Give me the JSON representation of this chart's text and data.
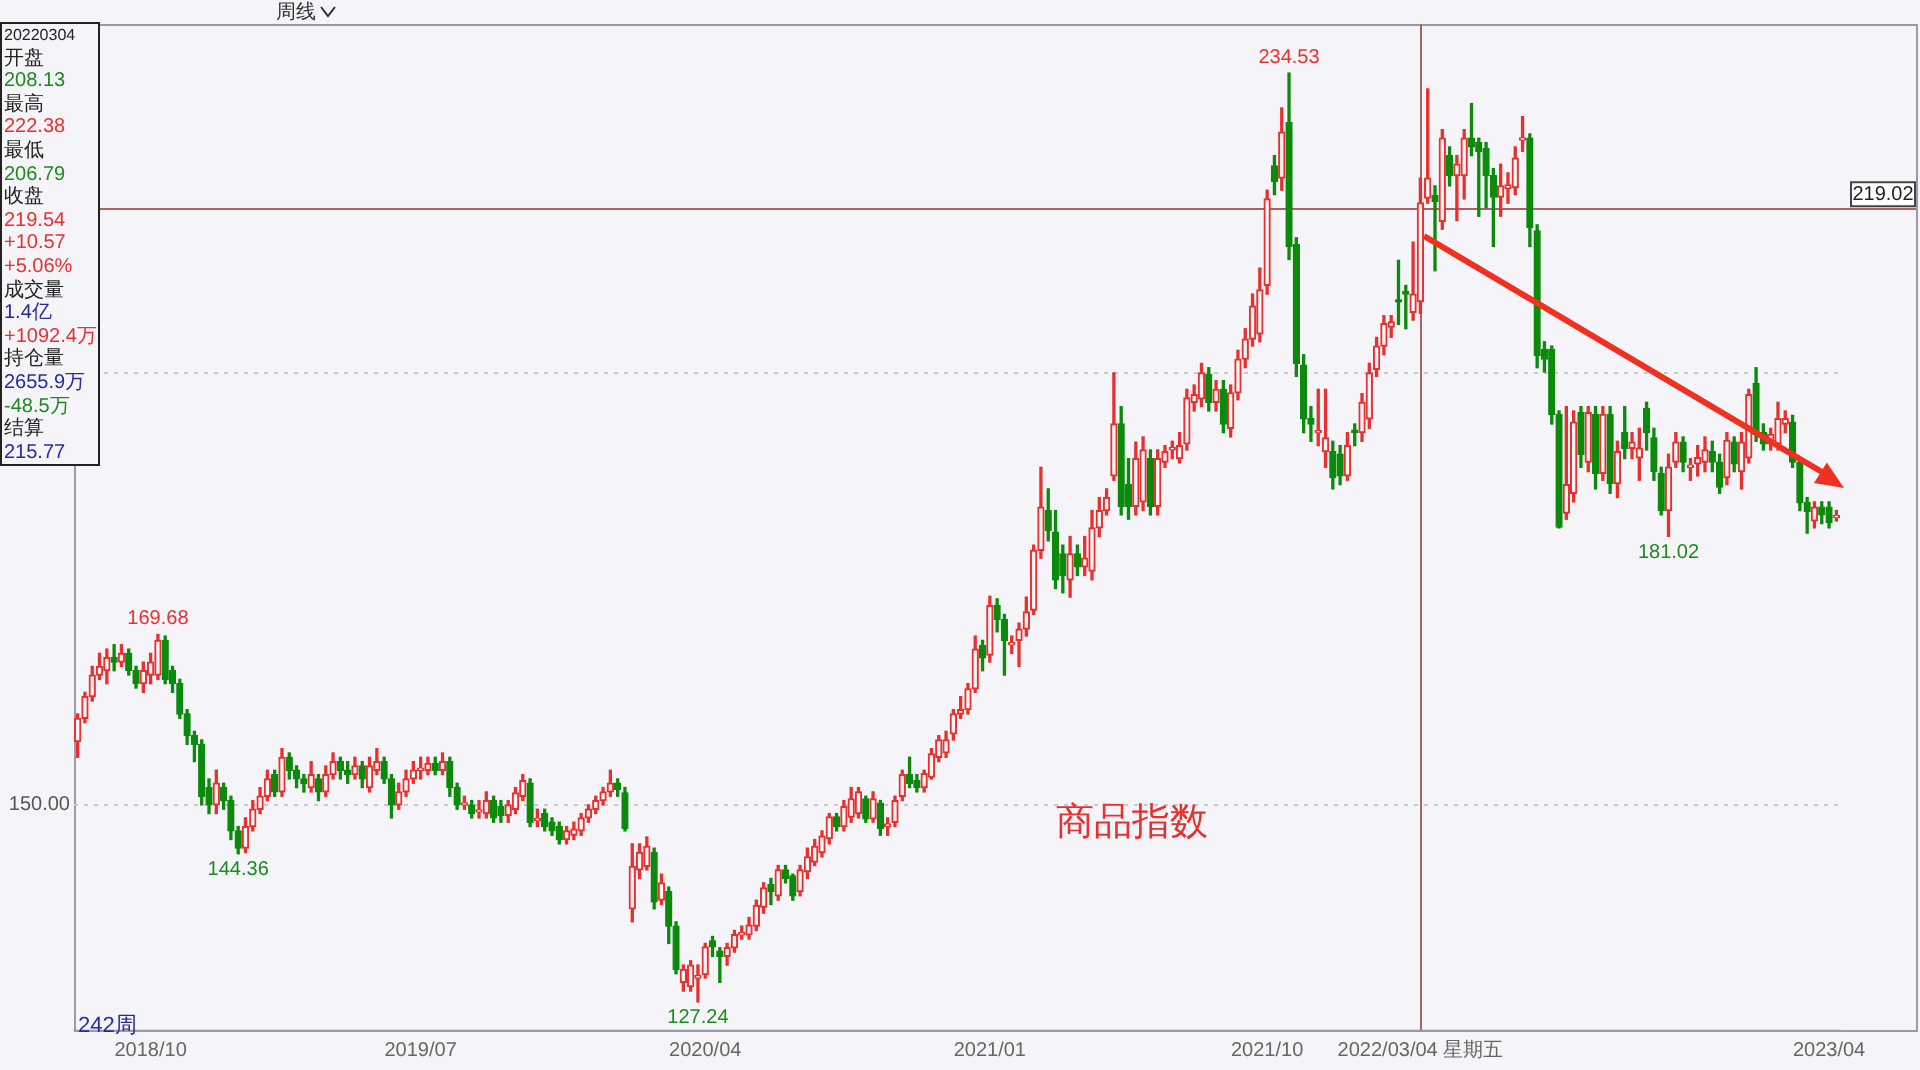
{
  "chart_data": {
    "type": "candlestick",
    "categories": [
      null,
      null,
      null,
      null,
      null,
      null,
      null,
      null,
      null,
      null,
      "2018/10",
      null,
      null,
      null,
      null,
      null,
      null,
      null,
      null,
      null,
      null,
      null,
      null,
      null,
      null,
      null,
      null,
      null,
      null,
      null,
      null,
      null,
      null,
      null,
      null,
      null,
      null,
      null,
      null,
      null,
      null,
      null,
      null,
      null,
      null,
      null,
      null,
      "2019/07",
      null,
      null,
      null,
      null,
      null,
      null,
      null,
      null,
      null,
      null,
      null,
      null,
      null,
      null,
      null,
      null,
      null,
      null,
      null,
      null,
      null,
      null,
      null,
      null,
      null,
      null,
      null,
      null,
      null,
      null,
      null,
      null,
      null,
      null,
      null,
      null,
      null,
      null,
      "2020/04",
      null,
      null,
      null,
      null,
      null,
      null,
      null,
      null,
      null,
      null,
      null,
      null,
      null,
      null,
      null,
      null,
      null,
      null,
      null,
      null,
      null,
      null,
      null,
      null,
      null,
      null,
      null,
      null,
      null,
      null,
      null,
      null,
      null,
      null,
      null,
      null,
      null,
      null,
      "2021/01",
      null,
      null,
      null,
      null,
      null,
      null,
      null,
      null,
      null,
      null,
      null,
      null,
      null,
      null,
      null,
      null,
      null,
      null,
      null,
      null,
      null,
      null,
      null,
      null,
      null,
      null,
      null,
      null,
      null,
      null,
      null,
      null,
      null,
      null,
      null,
      null,
      null,
      "2021/10",
      null,
      null,
      null,
      null,
      null,
      null,
      null,
      null,
      null,
      null,
      null,
      null,
      null,
      null,
      null,
      null,
      null,
      null,
      null,
      null,
      "2022/03/04 星期五",
      null,
      null,
      null,
      null,
      null,
      null,
      null,
      null,
      null,
      null,
      null,
      null,
      null,
      null,
      null,
      null,
      null,
      null,
      null,
      null,
      null,
      null,
      null,
      null,
      null,
      null,
      null,
      null,
      null,
      null,
      null,
      null,
      null,
      null,
      null,
      null,
      null,
      null,
      null,
      null,
      null,
      null,
      null,
      null,
      null,
      null,
      null,
      null,
      null,
      null,
      null,
      null,
      null,
      null,
      null,
      "2023/04",
      null
    ],
    "ohlc": [
      [
        157.3,
        160.5,
        155.5,
        160
      ],
      [
        160,
        163,
        159.5,
        162.5
      ],
      [
        162.5,
        166,
        162,
        165
      ],
      [
        165,
        167.5,
        164.5,
        166
      ],
      [
        165.5,
        168,
        164,
        167
      ],
      [
        167,
        168.5,
        165.5,
        166.5
      ],
      [
        166.5,
        168.5,
        166,
        167.5
      ],
      [
        167.5,
        168,
        165,
        165.5
      ],
      [
        165.5,
        166,
        163.5,
        164
      ],
      [
        164,
        166.5,
        163,
        165.5
      ],
      [
        165,
        167.5,
        164,
        166.5
      ],
      [
        165,
        169.68,
        164.5,
        169
      ],
      [
        169,
        169.5,
        164,
        164.5
      ],
      [
        165.5,
        166,
        163,
        164
      ],
      [
        164,
        164.5,
        160,
        160.5
      ],
      [
        160.5,
        161,
        157,
        158
      ],
      [
        158,
        158.5,
        155,
        157
      ],
      [
        157,
        157.5,
        150,
        151
      ],
      [
        152,
        153,
        149,
        150
      ],
      [
        150,
        154,
        149,
        152.5
      ],
      [
        152,
        152.5,
        149.5,
        150.5
      ],
      [
        150.5,
        151,
        146,
        147
      ],
      [
        147,
        147.5,
        144.36,
        145
      ],
      [
        145,
        148.5,
        144.5,
        147.5
      ],
      [
        147.5,
        150.5,
        147,
        149.5
      ],
      [
        149.5,
        152,
        149,
        151
      ],
      [
        151,
        154,
        150.5,
        153
      ],
      [
        153.5,
        154,
        151,
        151.5
      ],
      [
        151.5,
        156.5,
        151,
        155.5
      ],
      [
        155.5,
        156,
        153,
        154
      ],
      [
        154,
        154.5,
        152,
        153
      ],
      [
        153,
        153.5,
        151.5,
        152.5
      ],
      [
        152,
        155,
        151.5,
        153.5
      ],
      [
        153,
        153.5,
        150.5,
        151.5
      ],
      [
        151.5,
        154.5,
        151,
        153.5
      ],
      [
        153.5,
        156,
        153,
        155
      ],
      [
        155,
        155.5,
        153,
        154
      ],
      [
        154,
        155,
        152.5,
        153.5
      ],
      [
        153.5,
        155.5,
        153,
        154.5
      ],
      [
        154.5,
        155,
        152,
        153
      ],
      [
        152,
        155.5,
        151.5,
        154.5
      ],
      [
        154,
        156.5,
        153.5,
        155
      ],
      [
        155,
        155.5,
        152.5,
        153
      ],
      [
        153,
        153.5,
        148.5,
        150
      ],
      [
        150,
        152.5,
        149.5,
        151.5
      ],
      [
        151.5,
        154,
        151,
        153
      ],
      [
        153,
        155,
        152.5,
        154
      ],
      [
        154,
        155.5,
        153,
        154.2
      ],
      [
        154,
        155.5,
        153.5,
        154.8
      ],
      [
        154.8,
        155.5,
        153.5,
        154
      ],
      [
        154,
        156,
        153.5,
        155
      ],
      [
        155,
        155.5,
        151,
        152
      ],
      [
        152,
        152.5,
        149.5,
        150
      ],
      [
        150,
        151,
        149.5,
        150.2
      ],
      [
        150,
        150.5,
        148.5,
        149
      ],
      [
        149.2,
        150.5,
        148.5,
        149.4
      ],
      [
        149,
        151.5,
        148.5,
        150.5
      ],
      [
        150.5,
        151,
        148,
        148.5
      ],
      [
        149.8,
        150.5,
        148,
        148.8
      ],
      [
        148.8,
        150.5,
        148,
        150
      ],
      [
        149.5,
        152,
        149,
        151.4
      ],
      [
        151,
        153.5,
        150.5,
        152.8
      ],
      [
        152.5,
        153,
        147.5,
        148
      ],
      [
        148.2,
        149.5,
        147.5,
        148.4
      ],
      [
        149,
        149.5,
        147,
        147.5
      ],
      [
        148,
        148.5,
        146.5,
        147
      ],
      [
        147.5,
        148,
        145.5,
        146
      ],
      [
        146,
        147.5,
        145.5,
        147
      ],
      [
        146.5,
        148,
        146,
        147.2
      ],
      [
        147,
        149,
        146.5,
        148.5
      ],
      [
        148.5,
        150,
        148,
        149.5
      ],
      [
        149.5,
        151,
        149,
        150.5
      ],
      [
        150.5,
        152,
        150,
        151.5
      ],
      [
        151.5,
        154,
        151,
        152.5
      ],
      [
        152.5,
        153,
        151,
        151.8
      ],
      [
        151.4,
        152,
        147,
        147.3
      ],
      [
        138,
        145.5,
        136.5,
        142.9
      ],
      [
        142.5,
        145.5,
        141.5,
        144.5
      ],
      [
        142.9,
        146.3,
        142.5,
        145.2
      ],
      [
        144.5,
        145,
        138,
        138.8
      ],
      [
        139,
        142,
        138.5,
        141
      ],
      [
        140,
        140.5,
        134,
        136
      ],
      [
        136,
        136.5,
        130.5,
        131
      ],
      [
        129.5,
        131.5,
        128.5,
        131
      ],
      [
        129,
        132,
        128.5,
        131.5
      ],
      [
        130,
        131.5,
        127.24,
        130.3
      ],
      [
        130.4,
        134,
        130,
        133.6
      ],
      [
        134.3,
        134.8,
        132.5,
        133.6
      ],
      [
        133.1,
        133.5,
        129.5,
        132.5
      ],
      [
        132.5,
        134,
        131.5,
        133.5
      ],
      [
        133.5,
        135.5,
        133,
        135
      ],
      [
        135,
        136,
        134.5,
        135.2
      ],
      [
        135,
        137,
        134.5,
        136.1
      ],
      [
        136,
        139,
        135.5,
        138.4
      ],
      [
        138.2,
        141,
        137.5,
        140.4
      ],
      [
        140.8,
        141.5,
        138.5,
        140
      ],
      [
        139.5,
        143,
        139,
        142.5
      ],
      [
        142.5,
        143,
        141,
        141.5
      ],
      [
        141.8,
        142,
        139,
        139.5
      ],
      [
        140,
        143,
        139.5,
        142.5
      ],
      [
        142.3,
        145,
        141.5,
        144
      ],
      [
        143.4,
        146,
        143,
        145.2
      ],
      [
        144.5,
        147,
        144,
        146.4
      ],
      [
        146.1,
        149,
        145.5,
        148.6
      ],
      [
        148.6,
        149,
        147,
        147.5
      ],
      [
        147.5,
        150.5,
        147,
        149.8
      ],
      [
        148.6,
        152,
        148,
        150.7
      ],
      [
        149,
        152,
        148.5,
        151.5
      ],
      [
        150.7,
        151,
        148,
        148.4
      ],
      [
        148.4,
        151.5,
        148,
        150.7
      ],
      [
        150.2,
        150.5,
        146.5,
        147.3
      ],
      [
        147.5,
        148.5,
        146.5,
        147.8
      ],
      [
        148,
        151,
        147.5,
        150.5
      ],
      [
        151,
        154,
        150.5,
        153.5
      ],
      [
        153.5,
        155.5,
        152,
        152.5
      ],
      [
        152.8,
        153.5,
        151.5,
        152
      ],
      [
        152,
        154,
        151.5,
        153.6
      ],
      [
        153.2,
        156.5,
        153,
        155.9
      ],
      [
        155.5,
        158,
        155,
        157.5
      ],
      [
        156,
        158.5,
        155.5,
        157.5
      ],
      [
        158.2,
        161,
        157.5,
        160.5
      ],
      [
        160.5,
        162.5,
        160,
        161
      ],
      [
        161,
        164,
        160.5,
        163.4
      ],
      [
        163.4,
        169.5,
        163,
        168
      ],
      [
        168.4,
        169,
        165.5,
        167
      ],
      [
        167.3,
        174.1,
        166.5,
        173
      ],
      [
        173,
        173.8,
        170,
        171.4
      ],
      [
        171.4,
        172,
        165,
        169
      ],
      [
        168.5,
        169.5,
        167.5,
        168.7
      ],
      [
        169,
        171,
        166,
        170.3
      ],
      [
        170.3,
        174,
        169.5,
        172.3
      ],
      [
        172.5,
        180,
        172,
        179.4
      ],
      [
        179.4,
        189,
        178.5,
        184.4
      ],
      [
        184,
        186.5,
        180.5,
        181.7
      ],
      [
        181.5,
        184,
        175,
        176
      ],
      [
        179,
        180,
        174.5,
        176.5
      ],
      [
        176,
        181,
        174,
        179
      ],
      [
        179,
        180,
        176.5,
        177.5
      ],
      [
        177.5,
        181,
        176.5,
        178.5
      ],
      [
        177,
        184,
        176,
        182
      ],
      [
        182,
        185.5,
        181,
        184
      ],
      [
        184,
        186.5,
        183.5,
        185.5
      ],
      [
        188,
        199.9,
        187.5,
        194
      ],
      [
        194,
        196,
        183.5,
        184.5
      ],
      [
        187,
        190,
        183,
        184.5
      ],
      [
        184.5,
        191.9,
        183.5,
        190
      ],
      [
        185,
        192.5,
        184,
        191
      ],
      [
        190,
        191,
        183.5,
        184.5
      ],
      [
        184.5,
        191,
        183.5,
        190
      ],
      [
        189.6,
        191.5,
        189,
        190.8
      ],
      [
        191,
        192,
        190,
        191.3
      ],
      [
        190,
        193,
        189.5,
        191.5
      ],
      [
        191.7,
        198,
        191,
        197
      ],
      [
        196.5,
        198.5,
        195.5,
        197.4
      ],
      [
        196.9,
        201,
        196,
        199.9
      ],
      [
        199.7,
        200.5,
        195.5,
        196.5
      ],
      [
        196.5,
        199,
        195.5,
        198
      ],
      [
        198,
        199,
        193,
        194
      ],
      [
        193.5,
        198.5,
        192.5,
        197.6
      ],
      [
        197.6,
        202.5,
        196.8,
        201.5
      ],
      [
        201.5,
        205,
        200.5,
        203.8
      ],
      [
        203.8,
        209,
        203,
        207.6
      ],
      [
        204.4,
        212,
        203.5,
        209.5
      ],
      [
        210,
        221,
        209,
        220
      ],
      [
        223.8,
        225,
        220.5,
        222
      ],
      [
        222.4,
        230.5,
        221,
        227.7
      ],
      [
        228.8,
        234.53,
        213,
        214.5
      ],
      [
        214.7,
        215.5,
        199.5,
        201
      ],
      [
        200.8,
        202,
        193,
        194.6
      ],
      [
        194.6,
        196,
        192,
        194
      ],
      [
        193,
        198,
        191.5,
        193.2
      ],
      [
        190.8,
        198,
        189,
        192.4
      ],
      [
        190.8,
        192,
        186.5,
        187.8
      ],
      [
        190.5,
        191.5,
        187,
        188
      ],
      [
        188,
        193,
        187.5,
        191.5
      ],
      [
        193.3,
        194,
        191.5,
        193
      ],
      [
        193,
        197.5,
        192,
        196.5
      ],
      [
        194.6,
        201,
        193.5,
        199.9
      ],
      [
        200.3,
        204,
        199.5,
        203
      ],
      [
        203,
        206.5,
        202,
        205.6
      ],
      [
        205.2,
        206.5,
        204,
        205.8
      ],
      [
        208.3,
        212.9,
        205.5,
        208.1
      ],
      [
        209.3,
        210,
        205,
        209
      ],
      [
        206.9,
        215,
        206,
        209
      ],
      [
        208.13,
        222.38,
        206.79,
        219.54
      ],
      [
        220.1,
        232.7,
        219.5,
        222.4
      ],
      [
        220.4,
        221.5,
        211.7,
        219.7
      ],
      [
        217.4,
        228,
        216.5,
        227
      ],
      [
        225,
        226,
        221.5,
        222.7
      ],
      [
        222.7,
        225,
        217.5,
        224
      ],
      [
        222.7,
        228,
        220,
        227
      ],
      [
        227,
        231,
        225,
        226
      ],
      [
        226.5,
        227,
        218,
        225.5
      ],
      [
        225.8,
        226.5,
        219,
        222.7
      ],
      [
        222.7,
        223.5,
        214.5,
        220.2
      ],
      [
        220.2,
        224,
        218,
        221.5
      ],
      [
        221.2,
        223,
        219.5,
        221.6
      ],
      [
        221.3,
        226,
        220.5,
        224.7
      ],
      [
        226.8,
        229.5,
        225.5,
        227
      ],
      [
        227,
        227.5,
        214.5,
        216.7
      ],
      [
        216.3,
        217,
        200.5,
        201.9
      ],
      [
        202.6,
        203.5,
        200,
        201.5
      ],
      [
        202.6,
        203,
        194,
        195.1
      ],
      [
        195.1,
        195.5,
        182,
        182.1
      ],
      [
        183.7,
        196,
        183,
        187
      ],
      [
        186,
        195.5,
        185,
        194.2
      ],
      [
        195.3,
        196,
        189,
        190.5
      ],
      [
        189.6,
        196,
        188.5,
        195.3
      ],
      [
        195.1,
        196,
        186.5,
        188.3
      ],
      [
        188.3,
        196,
        187.5,
        195.1
      ],
      [
        195.1,
        196,
        186,
        187.1
      ],
      [
        187.1,
        192,
        185.5,
        190.8
      ],
      [
        193,
        196,
        190,
        191.2
      ],
      [
        191.2,
        193,
        190,
        191.9
      ],
      [
        190.1,
        193.5,
        187.5,
        191.2
      ],
      [
        195.8,
        196.5,
        191,
        193
      ],
      [
        192.4,
        193.5,
        187.5,
        188.5
      ],
      [
        188.3,
        189,
        183.5,
        184
      ],
      [
        184,
        190.5,
        181.02,
        189
      ],
      [
        189.6,
        193,
        189,
        191.9
      ],
      [
        191.9,
        192.5,
        188.5,
        189.6
      ],
      [
        189,
        190,
        187.5,
        189.2
      ],
      [
        189.4,
        191.5,
        188,
        190.1
      ],
      [
        189.6,
        192.5,
        188.5,
        191
      ],
      [
        190.8,
        192,
        188.5,
        189.6
      ],
      [
        189.6,
        190.5,
        186,
        186.7
      ],
      [
        187.8,
        193,
        187,
        192.1
      ],
      [
        191.9,
        192.5,
        188.5,
        189.4
      ],
      [
        188.5,
        193,
        186.5,
        191.9
      ],
      [
        190.1,
        198,
        189.5,
        197.4
      ],
      [
        198.7,
        200.5,
        192,
        192.8
      ],
      [
        193,
        194,
        191,
        191.7
      ],
      [
        191.7,
        193.5,
        191,
        192.8
      ],
      [
        191.7,
        196.5,
        191,
        194.6
      ],
      [
        194,
        195.5,
        193,
        194.6
      ],
      [
        194.2,
        195,
        189,
        189.6
      ],
      [
        189.6,
        190,
        184,
        184.9
      ],
      [
        184.9,
        185.5,
        181.4,
        183.9
      ],
      [
        182.8,
        185,
        182,
        184.4
      ],
      [
        184.4,
        185,
        182.5,
        183.5
      ],
      [
        184.4,
        185,
        182,
        182.6
      ],
      [
        183.2,
        184,
        182.8,
        183.3
      ]
    ],
    "colors": [
      "#e8312f",
      "#e8312f",
      "#e8312f",
      "#e8312f",
      "#e8312f",
      "#0b8a0b",
      "#e8312f",
      "#0b8a0b",
      "#0b8a0b",
      "#e8312f",
      "#e8312f",
      "#e8312f",
      "#0b8a0b",
      "#0b8a0b",
      "#0b8a0b",
      "#0b8a0b",
      "#0b8a0b",
      "#0b8a0b",
      "#0b8a0b",
      "#e8312f",
      "#0b8a0b",
      "#0b8a0b",
      "#0b8a0b",
      "#e8312f",
      "#e8312f",
      "#e8312f",
      "#e8312f",
      "#0b8a0b",
      "#e8312f",
      "#0b8a0b",
      "#0b8a0b",
      "#0b8a0b",
      "#e8312f",
      "#0b8a0b",
      "#e8312f",
      "#e8312f",
      "#0b8a0b",
      "#0b8a0b",
      "#e8312f",
      "#0b8a0b",
      "#e8312f",
      "#e8312f",
      "#0b8a0b",
      "#0b8a0b",
      "#e8312f",
      "#e8312f",
      "#e8312f",
      "#e8312f",
      "#e8312f",
      "#0b8a0b",
      "#e8312f",
      "#0b8a0b",
      "#0b8a0b",
      "#e8312f",
      "#0b8a0b",
      "#e8312f",
      "#e8312f",
      "#0b8a0b",
      "#0b8a0b",
      "#e8312f",
      "#e8312f",
      "#e8312f",
      "#0b8a0b",
      "#e8312f",
      "#0b8a0b",
      "#0b8a0b",
      "#0b8a0b",
      "#e8312f",
      "#e8312f",
      "#e8312f",
      "#e8312f",
      "#e8312f",
      "#e8312f",
      "#e8312f",
      "#0b8a0b",
      "#0b8a0b",
      "#e8312f",
      "#e8312f",
      "#e8312f",
      "#0b8a0b",
      "#e8312f",
      "#0b8a0b",
      "#0b8a0b",
      "#e8312f",
      "#e8312f",
      "#e8312f",
      "#e8312f",
      "#0b8a0b",
      "#0b8a0b",
      "#e8312f",
      "#e8312f",
      "#e8312f",
      "#e8312f",
      "#e8312f",
      "#e8312f",
      "#0b8a0b",
      "#e8312f",
      "#0b8a0b",
      "#0b8a0b",
      "#e8312f",
      "#e8312f",
      "#e8312f",
      "#e8312f",
      "#e8312f",
      "#0b8a0b",
      "#e8312f",
      "#e8312f",
      "#e8312f",
      "#0b8a0b",
      "#e8312f",
      "#0b8a0b",
      "#e8312f",
      "#e8312f",
      "#e8312f",
      "#0b8a0b",
      "#0b8a0b",
      "#e8312f",
      "#e8312f",
      "#e8312f",
      "#e8312f",
      "#e8312f",
      "#e8312f",
      "#e8312f",
      "#e8312f",
      "#0b8a0b",
      "#e8312f",
      "#0b8a0b",
      "#0b8a0b",
      "#e8312f",
      "#e8312f",
      "#e8312f",
      "#e8312f",
      "#e8312f",
      "#0b8a0b",
      "#0b8a0b",
      "#0b8a0b",
      "#e8312f",
      "#0b8a0b",
      "#e8312f",
      "#e8312f",
      "#e8312f",
      "#e8312f",
      "#e8312f",
      "#0b8a0b",
      "#0b8a0b",
      "#e8312f",
      "#e8312f",
      "#0b8a0b",
      "#e8312f",
      "#e8312f",
      "#e8312f",
      "#e8312f",
      "#e8312f",
      "#e8312f",
      "#e8312f",
      "#0b8a0b",
      "#e8312f",
      "#0b8a0b",
      "#e8312f",
      "#e8312f",
      "#e8312f",
      "#e8312f",
      "#e8312f",
      "#e8312f",
      "#0b8a0b",
      "#e8312f",
      "#0b8a0b",
      "#0b8a0b",
      "#0b8a0b",
      "#0b8a0b",
      "#e8312f",
      "#e8312f",
      "#0b8a0b",
      "#0b8a0b",
      "#e8312f",
      "#0b8a0b",
      "#e8312f",
      "#e8312f",
      "#e8312f",
      "#e8312f",
      "#e8312f",
      "#0b8a0b",
      "#0b8a0b",
      "#e8312f",
      "#e8312f",
      "#e8312f",
      "#0b8a0b",
      "#e8312f",
      "#0b8a0b",
      "#e8312f",
      "#e8312f",
      "#0b8a0b",
      "#0b8a0b",
      "#0b8a0b",
      "#0b8a0b",
      "#e8312f",
      "#e8312f",
      "#e8312f",
      "#e8312f",
      "#0b8a0b",
      "#0b8a0b",
      "#0b8a0b",
      "#0b8a0b",
      "#0b8a0b",
      "#e8312f",
      "#e8312f",
      "#0b8a0b",
      "#e8312f",
      "#0b8a0b",
      "#e8312f",
      "#0b8a0b",
      "#e8312f",
      "#0b8a0b",
      "#e8312f",
      "#e8312f",
      "#0b8a0b",
      "#0b8a0b",
      "#0b8a0b",
      "#e8312f",
      "#e8312f",
      "#0b8a0b",
      "#e8312f",
      "#e8312f",
      "#e8312f",
      "#0b8a0b",
      "#0b8a0b",
      "#e8312f",
      "#0b8a0b",
      "#e8312f",
      "#e8312f",
      "#0b8a0b",
      "#0b8a0b",
      "#e8312f",
      "#e8312f",
      "#e8312f",
      "#0b8a0b",
      "#0b8a0b",
      "#0b8a0b",
      "#e8312f",
      "#0b8a0b",
      "#0b8a0b",
      "#e8312f"
    ],
    "ylim": [
      124,
      240.2
    ],
    "ref_lines": [
      {
        "axis": "y",
        "value": 150,
        "label": "150.00",
        "color": "#c8c8d0",
        "line_style": "dashed"
      },
      {
        "axis": "y",
        "value": 200,
        "color": "#c8c8d0",
        "line_style": "dashed"
      },
      {
        "axis": "y",
        "value": 219.02,
        "label": "219.02",
        "color": "#b06060"
      },
      {
        "axis": "x",
        "value": "2022/03/04 星期五",
        "color": "#b06060"
      }
    ],
    "annotations": [
      "周线",
      "20220304",
      "开盘",
      "208.13",
      "最高",
      "222.38",
      "最低",
      "206.79",
      "收盘",
      "219.54",
      "+10.57",
      "+5.06%",
      "成交量",
      "1.4亿",
      "+1092.4万",
      "持仓量",
      "2655.9万",
      "-48.5万",
      "结算",
      "215.77",
      "242周",
      "商品指数",
      {
        "text": "169.68",
        "y": 169.68
      },
      {
        "text": "144.36",
        "y": 144.36
      },
      {
        "text": "127.24",
        "y": 127.24
      },
      {
        "text": "234.53",
        "y": 234.53
      },
      {
        "text": "181.02",
        "y": 181.02
      }
    ]
  }
}
